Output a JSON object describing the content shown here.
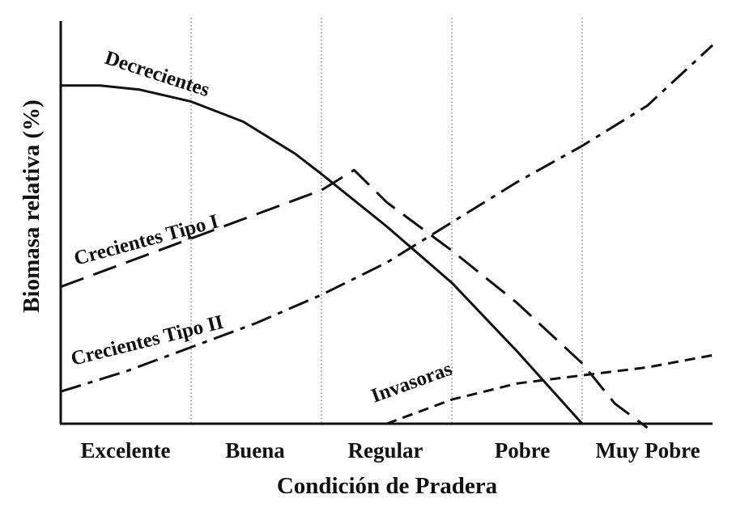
{
  "chart_data": {
    "type": "line",
    "title": "",
    "xlabel": "Condición de Pradera",
    "ylabel": "Biomasa relativa (%)",
    "categories": [
      "Excelente",
      "Buena",
      "Regular",
      "Pobre",
      "Muy Pobre"
    ],
    "xlim": [
      0,
      5
    ],
    "ylim": [
      0,
      100
    ],
    "grid": "vertical dotted separators",
    "series": [
      {
        "name": "Decrecientes",
        "style": "solid",
        "x": [
          0,
          0.3,
          0.6,
          1.0,
          1.4,
          1.8,
          2.0,
          2.5,
          3.0,
          3.5,
          4.0
        ],
        "y": [
          84,
          84,
          83,
          80,
          75,
          67,
          62,
          49,
          35,
          18,
          0
        ]
      },
      {
        "name": "Crecientes Tipo I",
        "style": "dashed",
        "x": [
          0,
          0.5,
          1.0,
          1.5,
          2.0,
          2.25,
          2.5,
          3.0,
          3.5,
          4.0,
          4.25,
          4.5
        ],
        "y": [
          34,
          40,
          46,
          52,
          58,
          63,
          55,
          43,
          30,
          15,
          5,
          -1
        ]
      },
      {
        "name": "Crecientes Tipo II",
        "style": "dash-dot",
        "x": [
          0,
          0.5,
          1.0,
          1.5,
          2.0,
          2.5,
          3.0,
          3.5,
          4.0,
          4.5,
          5.0
        ],
        "y": [
          8,
          13,
          19,
          25,
          32,
          40,
          50,
          60,
          69,
          79,
          94
        ]
      },
      {
        "name": "Invasoras",
        "style": "short-dashed",
        "x": [
          2.5,
          2.75,
          3.0,
          3.25,
          3.5,
          3.75,
          4.0,
          4.5,
          5.0
        ],
        "y": [
          0,
          3,
          6,
          8,
          10,
          11,
          12,
          14,
          17
        ]
      }
    ]
  }
}
